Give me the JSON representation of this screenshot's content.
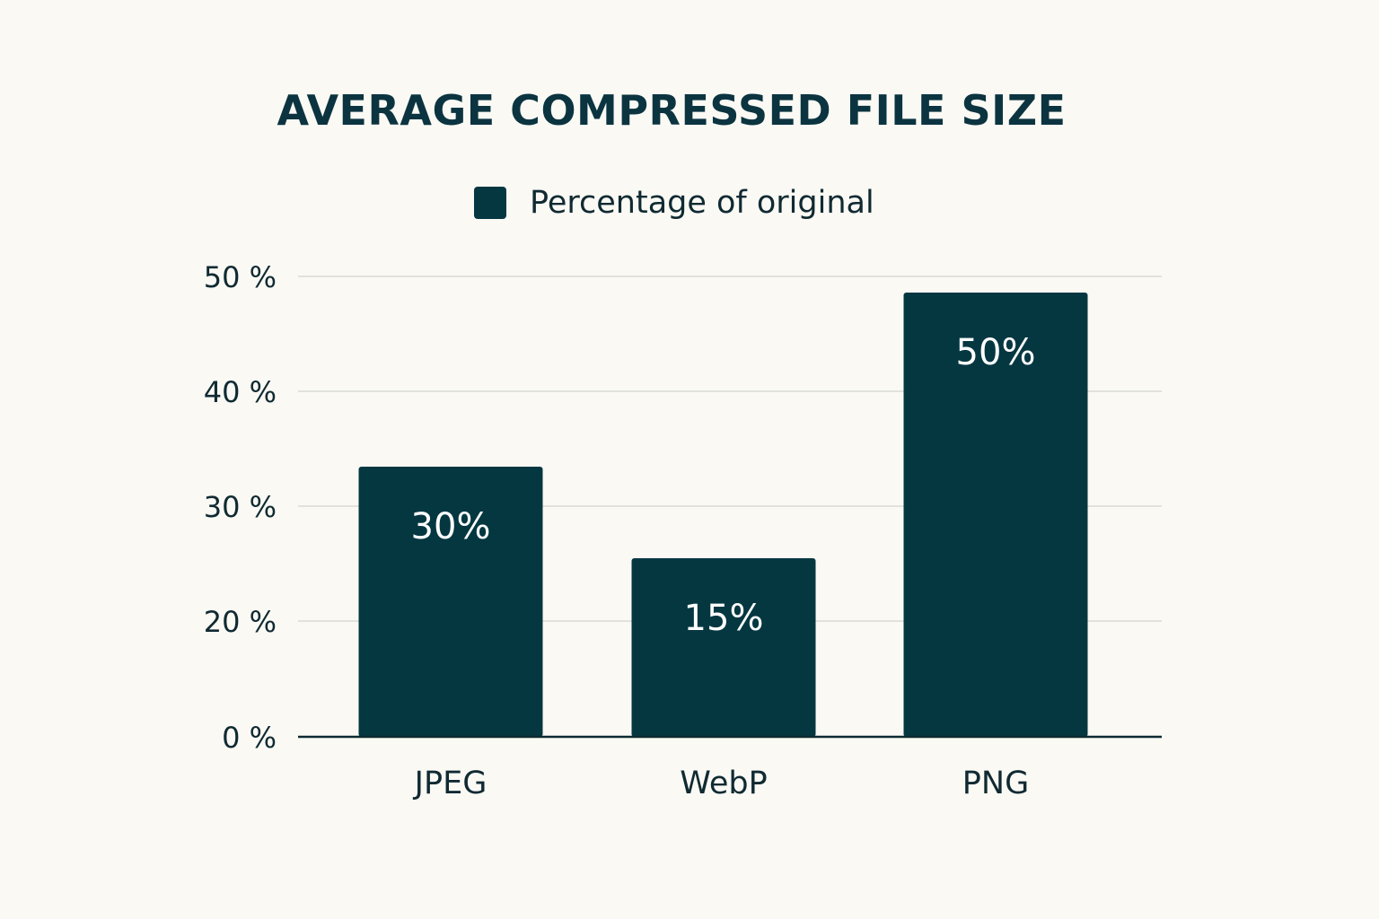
{
  "chart_data": {
    "type": "bar",
    "title": "AVERAGE COMPRESSED FILE SIZE",
    "xlabel": "",
    "ylabel": "",
    "categories": [
      "JPEG",
      "WebP",
      "PNG"
    ],
    "series": [
      {
        "name": "Percentage of original",
        "values": [
          30,
          15,
          50
        ],
        "data_labels": [
          "30%",
          "15%",
          "50%"
        ]
      }
    ],
    "y_ticks": [
      {
        "value": 0,
        "label": "0 %"
      },
      {
        "value": 20,
        "label": "20 %"
      },
      {
        "value": 30,
        "label": "30 %"
      },
      {
        "value": 40,
        "label": "40 %"
      },
      {
        "value": 50,
        "label": "50 %"
      }
    ],
    "grid": true,
    "legend_position": "top-center"
  },
  "colors": {
    "bar": "#053741",
    "title": "#0b3440",
    "text": "#102a32",
    "grid": "#e2e2dc",
    "axis": "#0e2a31",
    "data_label": "#ffffff",
    "background": "#faf9f4"
  }
}
